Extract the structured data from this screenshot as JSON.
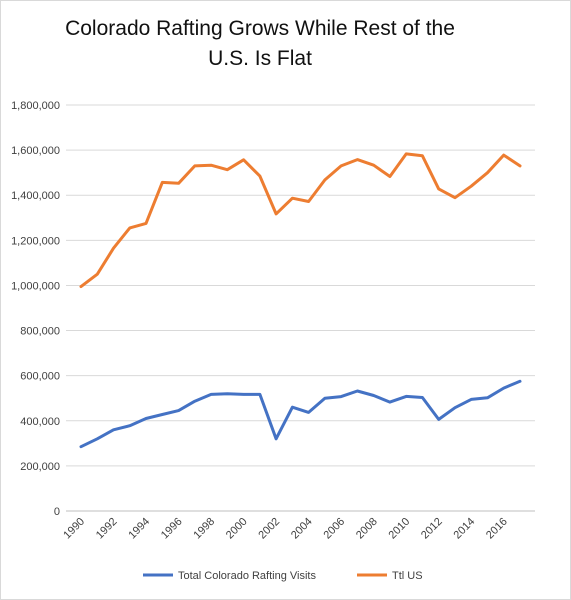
{
  "chart_data": {
    "type": "line",
    "title_line1": "Colorado  Rafting Grows While Rest of the",
    "title_line2": "U.S. Is Flat",
    "x": [
      1990,
      1991,
      1992,
      1993,
      1994,
      1995,
      1996,
      1997,
      1998,
      1999,
      2000,
      2001,
      2002,
      2003,
      2004,
      2005,
      2006,
      2007,
      2008,
      2009,
      2010,
      2011,
      2012,
      2013,
      2014,
      2015,
      2016,
      2017
    ],
    "x_tick_labels": [
      "1990",
      "1992",
      "1994",
      "1996",
      "1998",
      "2000",
      "2002",
      "2004",
      "2006",
      "2008",
      "2010",
      "2012",
      "2014",
      "2016"
    ],
    "y_tick_labels": [
      "0",
      "200,000",
      "400,000",
      "600,000",
      "800,000",
      "1,000,000",
      "1,200,000",
      "1,400,000",
      "1,600,000",
      "1,800,000"
    ],
    "ylim": [
      0,
      1800000
    ],
    "grid": "horizontal",
    "legend_position": "bottom",
    "series": [
      {
        "name": "Total Colorado Rafting Visits",
        "color": "#4472c4",
        "values": [
          285000,
          320000,
          360000,
          378000,
          410000,
          428000,
          445000,
          487000,
          517000,
          520000,
          517000,
          517000,
          320000,
          460000,
          437000,
          500000,
          507000,
          532000,
          512000,
          483000,
          508000,
          503000,
          406000,
          458000,
          495000,
          502000,
          545000,
          575000
        ]
      },
      {
        "name": "Ttl US",
        "color": "#ed7d31",
        "values": [
          995000,
          1050000,
          1165000,
          1255000,
          1275000,
          1457000,
          1453000,
          1530000,
          1533000,
          1513000,
          1557000,
          1485000,
          1317000,
          1387000,
          1372000,
          1468000,
          1530000,
          1558000,
          1533000,
          1483000,
          1583000,
          1575000,
          1428000,
          1389000,
          1440000,
          1500000,
          1578000,
          1530000
        ]
      }
    ]
  }
}
